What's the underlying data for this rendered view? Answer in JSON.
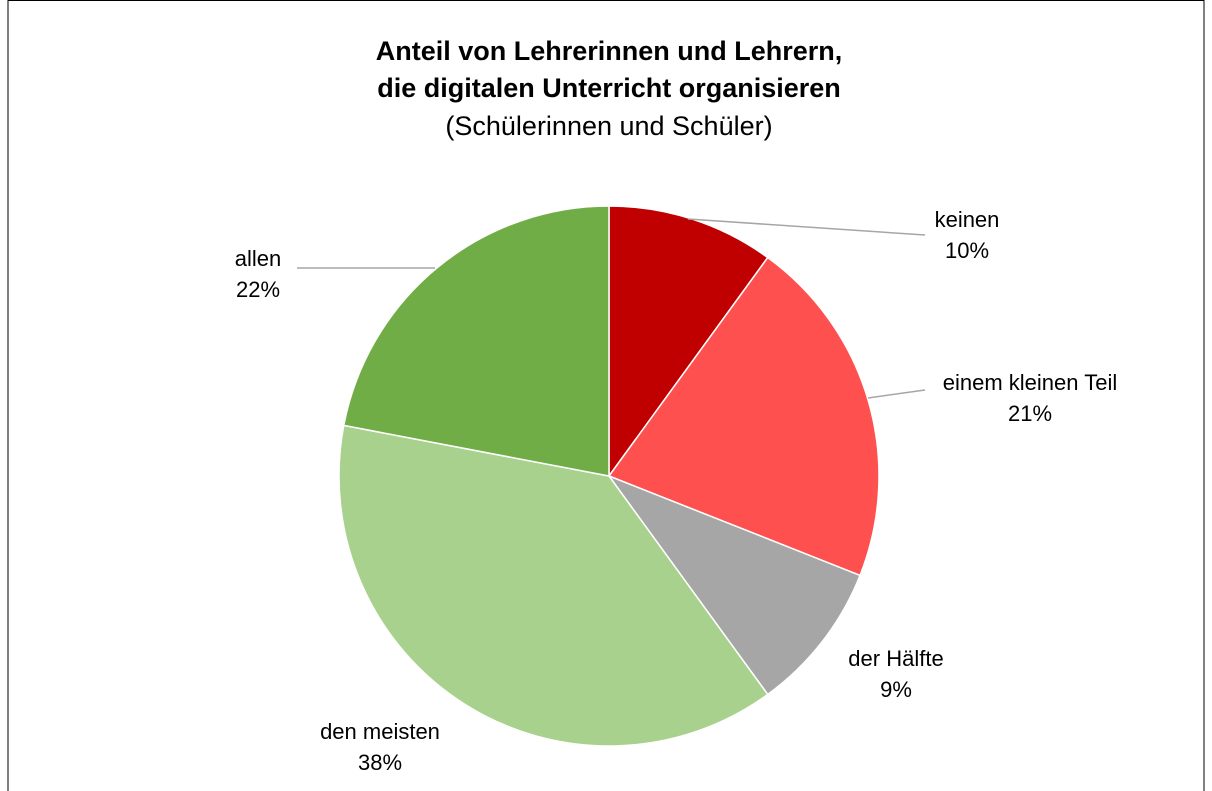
{
  "chart_data": {
    "type": "pie",
    "title": [
      "Anteil von Lehrerinnen und Lehrern,",
      "die digitalen Unterricht organisieren"
    ],
    "subtitle": "(Schülerinnen und Schüler)",
    "categories": [
      "keinen",
      "einem kleinen Teil",
      "der Hälfte",
      "den meisten",
      "allen"
    ],
    "values": [
      10,
      21,
      9,
      38,
      22
    ],
    "value_labels": [
      "10%",
      "21%",
      "9%",
      "38%",
      "22%"
    ],
    "colors": [
      "#c00000",
      "#ff5050",
      "#a6a6a6",
      "#a9d18e",
      "#70ad47"
    ]
  }
}
